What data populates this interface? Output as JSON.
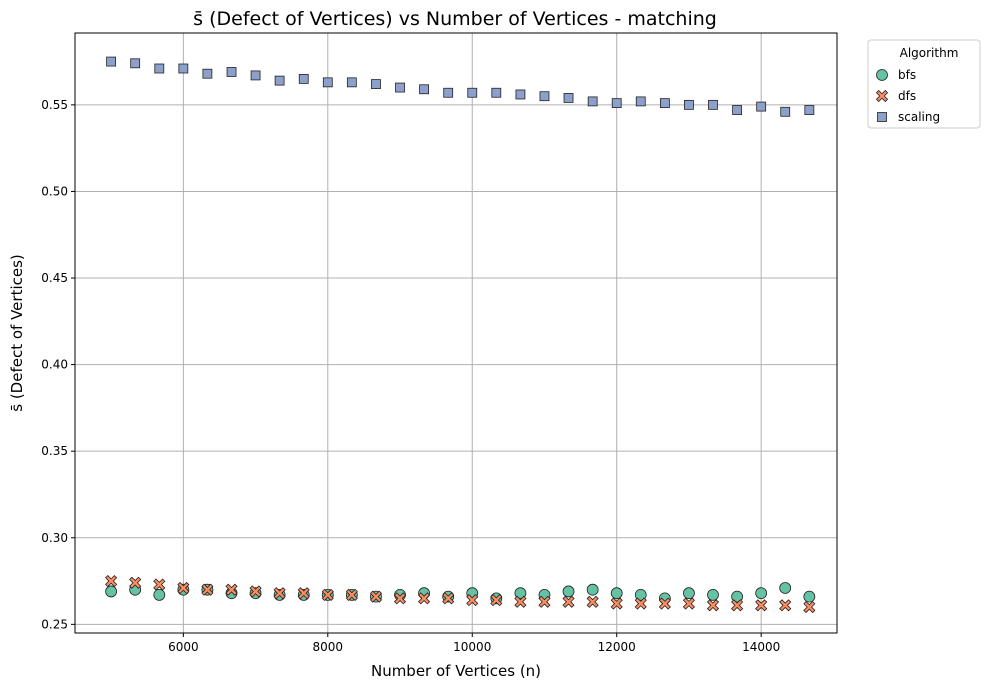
{
  "chart_data": {
    "type": "scatter",
    "title": "s̄ (Defect of Vertices) vs Number of Vertices - matching",
    "xlabel": "Number of Vertices (n)",
    "ylabel": "s̄ (Defect of Vertices)",
    "xlim": [
      4500,
      15050
    ],
    "ylim": [
      0.245,
      0.5915
    ],
    "x_ticks": [
      6000,
      8000,
      10000,
      12000,
      14000
    ],
    "y_ticks": [
      0.25,
      0.3,
      0.35,
      0.4,
      0.45,
      0.5,
      0.55
    ],
    "grid": true,
    "legend": {
      "title": "Algorithm",
      "placement": "upper-right-outside"
    },
    "x": [
      5000,
      5333,
      5667,
      6000,
      6333,
      6667,
      7000,
      7333,
      7667,
      8000,
      8333,
      8667,
      9000,
      9333,
      9667,
      10000,
      10333,
      10667,
      11000,
      11333,
      11667,
      12000,
      12333,
      12667,
      13000,
      13333,
      13667,
      14000,
      14333,
      14667
    ],
    "series": [
      {
        "name": "bfs",
        "marker": "circle",
        "color": "#66c2a5",
        "values": [
          0.269,
          0.27,
          0.267,
          0.27,
          0.27,
          0.268,
          0.268,
          0.267,
          0.267,
          0.267,
          0.267,
          0.266,
          0.267,
          0.268,
          0.266,
          0.268,
          0.265,
          0.268,
          0.267,
          0.269,
          0.27,
          0.268,
          0.267,
          0.265,
          0.268,
          0.267,
          0.266,
          0.268,
          0.271,
          0.266
        ]
      },
      {
        "name": "dfs",
        "marker": "x",
        "color": "#fc8d62",
        "values": [
          0.275,
          0.274,
          0.273,
          0.271,
          0.27,
          0.27,
          0.269,
          0.268,
          0.268,
          0.267,
          0.267,
          0.266,
          0.265,
          0.265,
          0.265,
          0.264,
          0.264,
          0.263,
          0.263,
          0.263,
          0.263,
          0.262,
          0.262,
          0.262,
          0.262,
          0.261,
          0.261,
          0.261,
          0.261,
          0.26
        ]
      },
      {
        "name": "scaling",
        "marker": "square",
        "color": "#8da0cb",
        "values": [
          0.575,
          0.574,
          0.571,
          0.571,
          0.568,
          0.569,
          0.567,
          0.564,
          0.565,
          0.563,
          0.563,
          0.562,
          0.56,
          0.559,
          0.557,
          0.557,
          0.557,
          0.556,
          0.555,
          0.554,
          0.552,
          0.551,
          0.552,
          0.551,
          0.55,
          0.55,
          0.547,
          0.549,
          0.546,
          0.547
        ]
      }
    ]
  }
}
